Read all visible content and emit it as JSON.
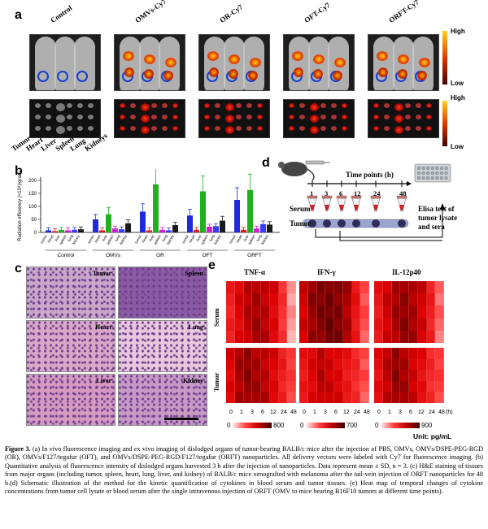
{
  "panel_a": {
    "letter": "a",
    "groups": [
      "Control",
      "OMVs-Cy7",
      "OR-Cy7",
      "OFT-Cy7",
      "ORFT-Cy7"
    ],
    "colorbar_high": "High",
    "colorbar_low": "Low",
    "colorbar2_high": "High",
    "colorbar2_low": "Low",
    "organ_labels": [
      "Tumor",
      "Heart",
      "Liver",
      "Spleen",
      "Lung",
      "Kidneys"
    ]
  },
  "panel_b": {
    "letter": "b",
    "ylabel": "Radiation efficiency (×10⁸)/gram",
    "group_labels": [
      "Control",
      "OMVs",
      "OR",
      "OFT",
      "ORFT"
    ]
  },
  "chart_data": {
    "type": "bar",
    "categories": [
      "tumor",
      "heart",
      "liver",
      "spleen",
      "lung",
      "kidney"
    ],
    "groups": [
      "Control",
      "OMVs",
      "OR",
      "OFT",
      "ORFT"
    ],
    "series": [
      {
        "values": [
          8,
          5,
          10,
          8,
          10,
          12
        ]
      },
      {
        "values": [
          50,
          8,
          70,
          15,
          12,
          35
        ]
      },
      {
        "values": [
          80,
          8,
          185,
          10,
          8,
          28
        ]
      },
      {
        "values": [
          65,
          10,
          158,
          22,
          24,
          45
        ]
      },
      {
        "values": [
          125,
          10,
          163,
          15,
          32,
          30
        ]
      }
    ],
    "colors": [
      "#1f2bdb",
      "#e02020",
      "#20b020",
      "#d020d0",
      "#3a3aff",
      "#1a1a1a"
    ],
    "yticks": [
      0,
      50,
      100,
      150,
      200
    ],
    "ylim": [
      0,
      200
    ]
  },
  "panel_c": {
    "letter": "c",
    "tiles": [
      "Tumor",
      "Spleen",
      "Heart",
      "Lung",
      "Liver",
      "Kidney"
    ]
  },
  "panel_d": {
    "letter": "d",
    "timepoints_title": "Time points (h)",
    "timepoints": [
      "1",
      "3",
      "6",
      "12",
      "24",
      "48"
    ],
    "serum": "Serum",
    "tumor": "Tumor",
    "elisa": "Elisa test of tumor lysate and sera"
  },
  "panel_e": {
    "letter": "e",
    "cytokines": [
      "TNF-α",
      "IFN-γ",
      "IL-12p40"
    ],
    "rows": [
      "Serum",
      "Tumor"
    ],
    "xticks": [
      "0",
      "1",
      "3",
      "6",
      "12",
      "24",
      "48"
    ],
    "xunit": "(h)",
    "scales": [
      "800",
      "700",
      "900"
    ],
    "scale_zero": "0",
    "unit": "Unit: pg/mL"
  },
  "caption": {
    "label": "Figure 3.",
    "text": "(a) In vivo fluorescence imaging and ex vivo imaging of dislodged organs of tumor-bearing BALB/c mice after the injection of PBS, OMVs, OMVs/DSPE-PEG-RGD (OR), OMVs/F127/tegafur (OFT), and OMVs/DSPE-PEG-RGD/F127/tegafur (ORFT) nanoparticles. All delivery vectors were labeled with Cy7 for fluorescence imaging. (b) Quantitative analysis of fluorescence intensity of dislodged organs harvested 3 h after the injection of nanoparticles. Data represent mean ± SD, n = 3. (c) H&E staining of tissues from major organs (including tumor, spleen, heart, lung, liver, and kidney) of BALB/c mice xenografted with melanoma after the tail-vein injection of ORFT nanoparticles for 48 h.(d) Schematic illustration of the method for the kinetic quantification of cytokines in blood serum and tumor tissues. (e) Heat map of temporal changes of cytokine concentrations from tumor cell lysate or blood serum after the single intravenous injection of ORFT (OMV to mice bearing B16F10 tumors at different time points)."
  }
}
